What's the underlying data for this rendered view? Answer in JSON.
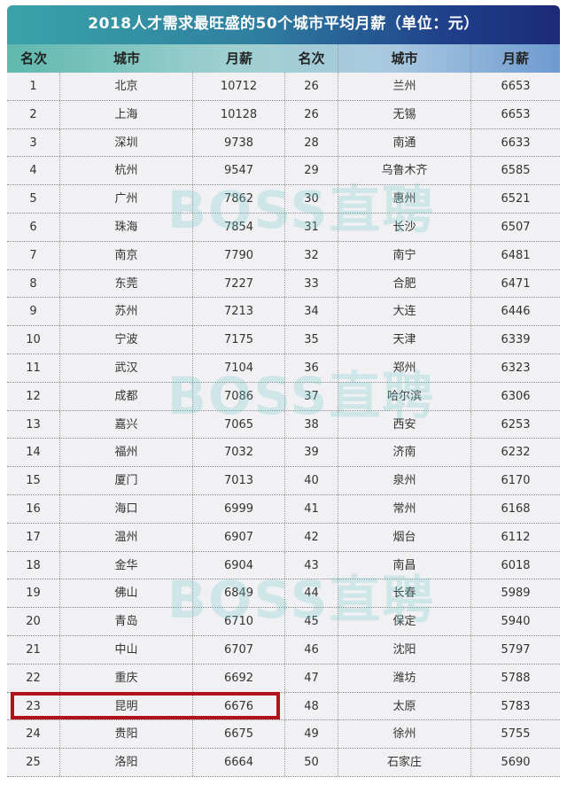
{
  "title": "2018人才需求最旺盛的50个城市平均月薪（单位：元）",
  "watermark": "BOSS直聘",
  "colors": {
    "highlight": "#b0141a",
    "title_bg_start": "#3aa3a8",
    "title_bg_end": "#1c2a78"
  },
  "chart_data": {
    "type": "table",
    "title": "2018人才需求最旺盛的50个城市平均月薪（单位：元）",
    "columns": [
      "名次",
      "城市",
      "月薪",
      "名次",
      "城市",
      "月薪"
    ],
    "highlighted_rank": 23,
    "rows": [
      {
        "rank": "1",
        "city": "北京",
        "salary": "10712"
      },
      {
        "rank": "2",
        "city": "上海",
        "salary": "10128"
      },
      {
        "rank": "3",
        "city": "深圳",
        "salary": "9738"
      },
      {
        "rank": "4",
        "city": "杭州",
        "salary": "9547"
      },
      {
        "rank": "5",
        "city": "广州",
        "salary": "7862"
      },
      {
        "rank": "6",
        "city": "珠海",
        "salary": "7854"
      },
      {
        "rank": "7",
        "city": "南京",
        "salary": "7790"
      },
      {
        "rank": "8",
        "city": "东莞",
        "salary": "7227"
      },
      {
        "rank": "9",
        "city": "苏州",
        "salary": "7213"
      },
      {
        "rank": "10",
        "city": "宁波",
        "salary": "7175"
      },
      {
        "rank": "11",
        "city": "武汉",
        "salary": "7104"
      },
      {
        "rank": "12",
        "city": "成都",
        "salary": "7086"
      },
      {
        "rank": "13",
        "city": "嘉兴",
        "salary": "7065"
      },
      {
        "rank": "14",
        "city": "福州",
        "salary": "7032"
      },
      {
        "rank": "15",
        "city": "厦门",
        "salary": "7013"
      },
      {
        "rank": "16",
        "city": "海口",
        "salary": "6999"
      },
      {
        "rank": "17",
        "city": "温州",
        "salary": "6907"
      },
      {
        "rank": "18",
        "city": "金华",
        "salary": "6904"
      },
      {
        "rank": "19",
        "city": "佛山",
        "salary": "6849"
      },
      {
        "rank": "20",
        "city": "青岛",
        "salary": "6710"
      },
      {
        "rank": "21",
        "city": "中山",
        "salary": "6707"
      },
      {
        "rank": "22",
        "city": "重庆",
        "salary": "6692"
      },
      {
        "rank": "23",
        "city": "昆明",
        "salary": "6676"
      },
      {
        "rank": "24",
        "city": "贵阳",
        "salary": "6675"
      },
      {
        "rank": "25",
        "city": "洛阳",
        "salary": "6664"
      },
      {
        "rank": "26",
        "city": "兰州",
        "salary": "6653"
      },
      {
        "rank": "26",
        "city": "无锡",
        "salary": "6653"
      },
      {
        "rank": "28",
        "city": "南通",
        "salary": "6633"
      },
      {
        "rank": "29",
        "city": "乌鲁木齐",
        "salary": "6585"
      },
      {
        "rank": "30",
        "city": "惠州",
        "salary": "6521"
      },
      {
        "rank": "31",
        "city": "长沙",
        "salary": "6507"
      },
      {
        "rank": "32",
        "city": "南宁",
        "salary": "6481"
      },
      {
        "rank": "33",
        "city": "合肥",
        "salary": "6471"
      },
      {
        "rank": "34",
        "city": "大连",
        "salary": "6446"
      },
      {
        "rank": "35",
        "city": "天津",
        "salary": "6339"
      },
      {
        "rank": "36",
        "city": "郑州",
        "salary": "6323"
      },
      {
        "rank": "37",
        "city": "哈尔滨",
        "salary": "6306"
      },
      {
        "rank": "38",
        "city": "西安",
        "salary": "6253"
      },
      {
        "rank": "39",
        "city": "济南",
        "salary": "6232"
      },
      {
        "rank": "40",
        "city": "泉州",
        "salary": "6170"
      },
      {
        "rank": "41",
        "city": "常州",
        "salary": "6168"
      },
      {
        "rank": "42",
        "city": "烟台",
        "salary": "6112"
      },
      {
        "rank": "43",
        "city": "南昌",
        "salary": "6018"
      },
      {
        "rank": "44",
        "city": "长春",
        "salary": "5989"
      },
      {
        "rank": "45",
        "city": "保定",
        "salary": "5940"
      },
      {
        "rank": "46",
        "city": "沈阳",
        "salary": "5797"
      },
      {
        "rank": "47",
        "city": "潍坊",
        "salary": "5788"
      },
      {
        "rank": "48",
        "city": "太原",
        "salary": "5783"
      },
      {
        "rank": "49",
        "city": "徐州",
        "salary": "5755"
      },
      {
        "rank": "50",
        "city": "石家庄",
        "salary": "5690"
      }
    ]
  }
}
